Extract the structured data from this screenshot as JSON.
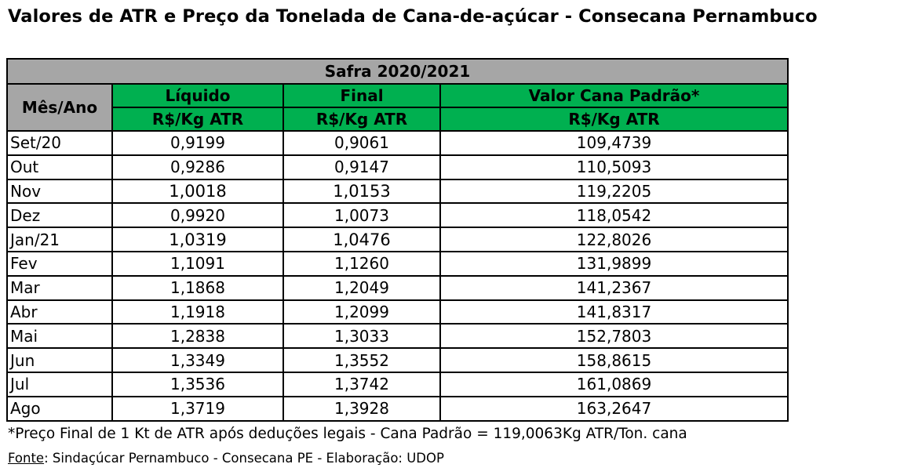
{
  "title": "Valores de ATR e Preço da Tonelada de Cana-de-açúcar - Consecana Pernambuco",
  "table": {
    "safra": "Safra 2020/2021",
    "col_mes": "Mês/Ano",
    "col_liquido": "Líquido",
    "col_final": "Final",
    "col_valor": "Valor Cana Padrão*",
    "unit": "R$/Kg  ATR",
    "rows": [
      {
        "mes": "Set/20",
        "liquido": "0,9199",
        "final": "0,9061",
        "valor": "109,4739"
      },
      {
        "mes": "Out",
        "liquido": "0,9286",
        "final": "0,9147",
        "valor": "110,5093"
      },
      {
        "mes": "Nov",
        "liquido": "1,0018",
        "final": "1,0153",
        "valor": "119,2205"
      },
      {
        "mes": "Dez",
        "liquido": "0,9920",
        "final": "1,0073",
        "valor": "118,0542"
      },
      {
        "mes": "Jan/21",
        "liquido": "1,0319",
        "final": "1,0476",
        "valor": "122,8026"
      },
      {
        "mes": "Fev",
        "liquido": "1,1091",
        "final": "1,1260",
        "valor": "131,9899"
      },
      {
        "mes": "Mar",
        "liquido": "1,1868",
        "final": "1,2049",
        "valor": "141,2367"
      },
      {
        "mes": "Abr",
        "liquido": "1,1918",
        "final": "1,2099",
        "valor": "141,8317"
      },
      {
        "mes": "Mai",
        "liquido": "1,2838",
        "final": "1,3033",
        "valor": "152,7803"
      },
      {
        "mes": "Jun",
        "liquido": "1,3349",
        "final": "1,3552",
        "valor": "158,8615"
      },
      {
        "mes": "Jul",
        "liquido": "1,3536",
        "final": "1,3742",
        "valor": "161,0869"
      },
      {
        "mes": "Ago",
        "liquido": "1,3719",
        "final": "1,3928",
        "valor": "163,2647"
      }
    ]
  },
  "footnote": "*Preço Final de 1 Kt de ATR após deduções legais - Cana Padrão = 119,0063Kg ATR/Ton. cana",
  "source": {
    "label": "Fonte",
    "text": ": Sindaçúcar Pernambuco - Consecana PE - Elaboração: UDOP"
  },
  "colors": {
    "header_gray": "#a6a6a6",
    "header_green": "#00b050"
  }
}
